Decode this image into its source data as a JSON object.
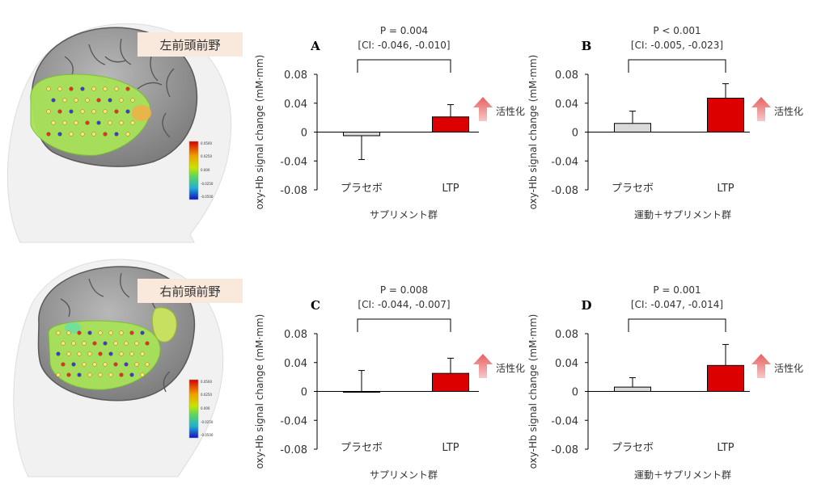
{
  "brain_panels": [
    {
      "region_label": "左前頭前野",
      "scale_ticks": [
        "0.0500",
        "0.0250",
        "0.000",
        "-0.0250",
        "-0.0500"
      ]
    },
    {
      "region_label": "右前頭前野",
      "scale_ticks": [
        "0.0500",
        "0.0250",
        "0.000",
        "-0.0250",
        "-0.0500"
      ]
    }
  ],
  "activation_label": "活性化",
  "colors": {
    "placebo_bar": "#d9d9d9",
    "ltp_bar": "#dd0000",
    "arrow": "#ec8484",
    "activation_text": "#dd0000",
    "label_box": "#f9e8dc"
  },
  "chart_data": [
    {
      "type": "bar",
      "panel": "A",
      "categories": [
        "プラセボ",
        "LTP"
      ],
      "values": [
        -0.005,
        0.021
      ],
      "errors": [
        0.033,
        0.017
      ],
      "error_direction": [
        "down",
        "up"
      ],
      "p_value": "P = 0.004",
      "ci": "[CI: -0.046, -0.010]",
      "ylabel": "oxy-Hb signal change (mM·mm)",
      "xlabel": "サプリメント群",
      "ylim": [
        -0.08,
        0.08
      ],
      "yticks": [
        "0.08",
        "0.04",
        "0",
        "-0.04",
        "-0.08"
      ],
      "show_activation": true
    },
    {
      "type": "bar",
      "panel": "B",
      "categories": [
        "プラセボ",
        "LTP"
      ],
      "values": [
        0.012,
        0.047
      ],
      "errors": [
        0.017,
        0.02
      ],
      "error_direction": [
        "up",
        "up"
      ],
      "p_value": "P < 0.001",
      "ci": "[CI: -0.005, -0.023]",
      "ylabel": "oxy-Hb signal change (mM·mm)",
      "xlabel": "運動＋サプリメント群",
      "ylim": [
        -0.08,
        0.08
      ],
      "yticks": [
        "0.08",
        "0.04",
        "0",
        "-0.04",
        "-0.08"
      ],
      "show_activation": true
    },
    {
      "type": "bar",
      "panel": "C",
      "categories": [
        "プラセボ",
        "LTP"
      ],
      "values": [
        -0.001,
        0.025
      ],
      "errors": [
        0.03,
        0.021
      ],
      "error_direction": [
        "up",
        "up"
      ],
      "p_value": "P = 0.008",
      "ci": "[CI: -0.044, -0.007]",
      "ylabel": "oxy-Hb signal change (mM·mm)",
      "xlabel": "サプリメント群",
      "ylim": [
        -0.08,
        0.08
      ],
      "yticks": [
        "0.08",
        "0.04",
        "0",
        "-0.04",
        "-0.08"
      ],
      "show_activation": true
    },
    {
      "type": "bar",
      "panel": "D",
      "categories": [
        "プラセボ",
        "LTP"
      ],
      "values": [
        0.006,
        0.036
      ],
      "errors": [
        0.013,
        0.029
      ],
      "error_direction": [
        "up",
        "up"
      ],
      "p_value": "P = 0.001",
      "ci": "[CI: -0.047, -0.014]",
      "ylabel": "oxy-Hb signal change (mM·mm)",
      "xlabel": "運動＋サプリメント群",
      "ylim": [
        -0.08,
        0.08
      ],
      "yticks": [
        "0.08",
        "0.04",
        "0",
        "-0.04",
        "-0.08"
      ],
      "show_activation": true
    }
  ]
}
